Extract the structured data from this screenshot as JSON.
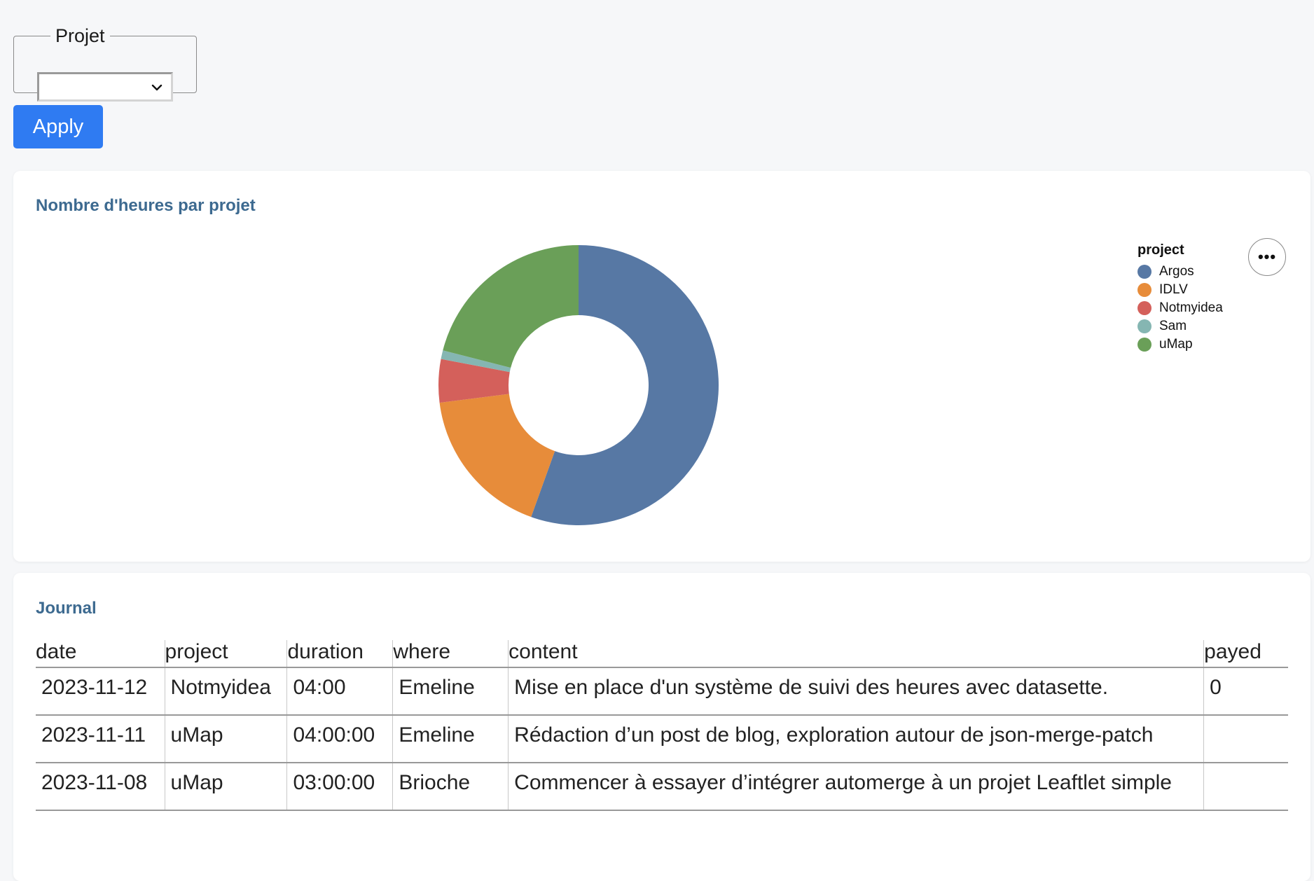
{
  "filter": {
    "legend": "Projet",
    "selected_value": "",
    "apply_label": "Apply"
  },
  "chart_card": {
    "title": "Nombre d'heures par projet",
    "legend_title": "project",
    "more_label": "•••"
  },
  "chart_data": {
    "type": "pie",
    "variant": "donut",
    "title": "Nombre d'heures par projet",
    "legend_title": "project",
    "legend_position": "top-right",
    "categories": [
      "Argos",
      "IDLV",
      "Notmyidea",
      "Sam",
      "uMap"
    ],
    "values": [
      55.5,
      17.5,
      5,
      1,
      21
    ],
    "unit": "% of hours",
    "colors": [
      "#5778a4",
      "#e78c3a",
      "#d4605b",
      "#85b6b2",
      "#6a9f58"
    ]
  },
  "journal": {
    "title": "Journal",
    "columns": [
      "date",
      "project",
      "duration",
      "where",
      "content",
      "payed"
    ],
    "rows": [
      {
        "date": "2023-11-12",
        "project": "Notmyidea",
        "duration": "04:00",
        "where": "Emeline",
        "content": "Mise en place d'un système de suivi des heures avec datasette.",
        "payed": "0"
      },
      {
        "date": "2023-11-11",
        "project": "uMap",
        "duration": "04:00:00",
        "where": "Emeline",
        "content": "Rédaction d’un post de blog, exploration autour de json-merge-patch",
        "payed": ""
      },
      {
        "date": "2023-11-08",
        "project": "uMap",
        "duration": "03:00:00",
        "where": "Brioche",
        "content": "Commencer à essayer d’intégrer automerge à un projet Leaftlet simple",
        "payed": ""
      }
    ]
  }
}
